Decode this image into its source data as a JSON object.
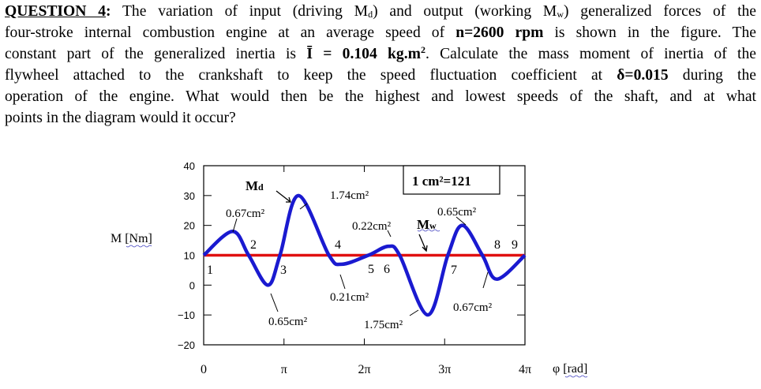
{
  "question": {
    "lines": [
      [
        {
          "t": "QUESTION 4",
          "s": "b u"
        },
        {
          "t": ":",
          "s": "b"
        },
        {
          "t": " The variation of input (driving M"
        },
        {
          "t": "d",
          "s": "sub"
        },
        {
          "t": ") and output (working M"
        },
        {
          "t": "w",
          "s": "sub"
        },
        {
          "t": ") generalized forces of the"
        }
      ],
      [
        {
          "t": "four-stroke internal combustion engine at an average speed of "
        },
        {
          "t": "n=2600 rpm",
          "s": "b"
        },
        {
          "t": " is shown in the figure. The"
        }
      ],
      [
        {
          "t": "constant part of the generalized inertia is "
        },
        {
          "t": "Ī = 0.104 kg.m",
          "s": "b"
        },
        {
          "t": "2",
          "s": "b sup"
        },
        {
          "t": ". Calculate the mass moment of inertia of the"
        }
      ],
      [
        {
          "t": "flywheel attached to the crankshaft to keep the speed fluctuation coefficient at "
        },
        {
          "t": "δ=0.015",
          "s": "b"
        },
        {
          "t": " during the"
        }
      ],
      [
        {
          "t": "operation of the engine. What would then be the highest and lowest speeds of the shaft, and at what"
        }
      ],
      [
        {
          "t": "points in the diagram would it occur?"
        }
      ]
    ]
  },
  "chart_data": {
    "type": "line",
    "ylabel": "M [Nm]",
    "xlabel": "φ [rad]",
    "ylim": [
      -20,
      40
    ],
    "xlim_pi": [
      0,
      4
    ],
    "yticks": [
      "40",
      "30",
      "20",
      "10",
      "0",
      "−10",
      "−20"
    ],
    "xticks": [
      "0",
      "π",
      "2π",
      "3π",
      "4π"
    ],
    "scale_note": "1 cm²=121",
    "series": [
      {
        "name": "Md",
        "color": "#1a1ad0",
        "x_pi": [
          0,
          0.36,
          0.56,
          0.8,
          0.95,
          1.18,
          1.56,
          1.72,
          2.05,
          2.3,
          2.44,
          2.79,
          3.04,
          3.22,
          3.47,
          3.65,
          4.0
        ],
        "y": [
          10,
          18,
          10,
          0,
          10,
          30,
          10,
          7,
          10,
          13,
          10,
          -10,
          10,
          20,
          10,
          2,
          10
        ]
      },
      {
        "name": "Mw",
        "color": "#e01010",
        "x_pi": [
          0,
          4
        ],
        "y": [
          10,
          10
        ]
      }
    ],
    "point_labels": [
      "1",
      "2",
      "3",
      "4",
      "5",
      "6",
      "7",
      "8",
      "9"
    ],
    "area_labels": [
      "0.67cm²",
      "0.65cm²",
      "1.74cm²",
      "0.21cm²",
      "0.22cm²",
      "1.75cm²",
      "0.65cm²",
      "0.67cm²"
    ]
  }
}
